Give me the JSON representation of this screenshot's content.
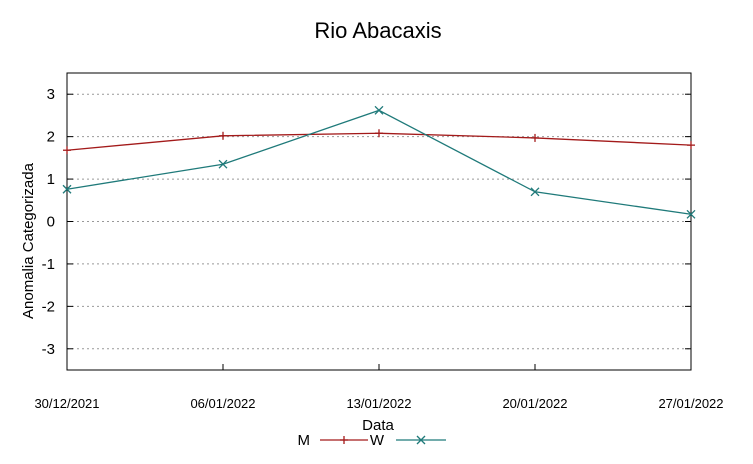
{
  "chart_data": {
    "type": "line",
    "title": "Rio Abacaxis",
    "xlabel": "Data",
    "ylabel": "Anomalia Categorizada",
    "x": [
      "30/12/2021",
      "06/01/2022",
      "13/01/2022",
      "20/01/2022",
      "27/01/2022"
    ],
    "xlim": [
      0,
      28
    ],
    "ylim": [
      -3.5,
      3.5
    ],
    "yticks": [
      3,
      2,
      1,
      0,
      -1,
      -2,
      -3
    ],
    "ytick_labels": [
      "3",
      "2",
      "1",
      "0",
      "-1",
      "-2",
      "-3"
    ],
    "grid": true,
    "legend_position": "bottom-center",
    "series": [
      {
        "name": "M",
        "color": "#a31a1a",
        "marker": "plus",
        "points": [
          [
            0,
            1.68
          ],
          [
            7,
            2.02
          ],
          [
            14,
            2.08
          ],
          [
            21,
            1.97
          ],
          [
            28,
            1.8
          ]
        ]
      },
      {
        "name": "W",
        "color": "#1f7a7a",
        "marker": "cross",
        "points": [
          [
            0,
            0.76
          ],
          [
            7,
            1.35
          ],
          [
            14,
            2.62
          ],
          [
            21,
            0.7
          ],
          [
            28,
            0.17
          ]
        ]
      }
    ]
  }
}
